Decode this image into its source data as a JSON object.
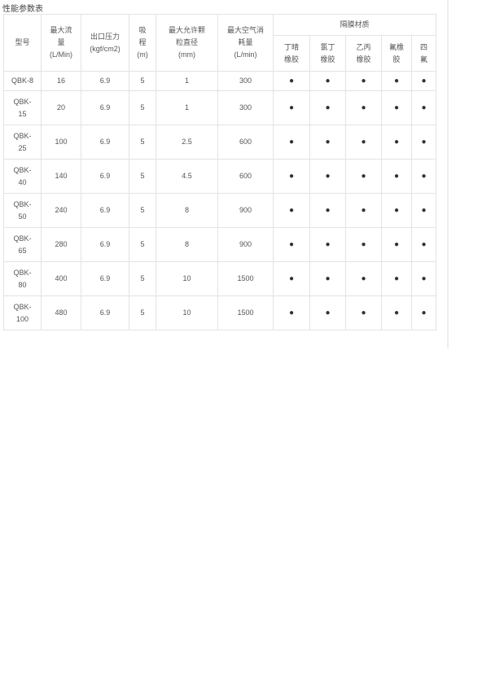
{
  "title": "性能参数表",
  "headers": {
    "model": "型号",
    "flow": [
      "最大流",
      "量",
      "(L/Min)"
    ],
    "pressure": [
      "出口压力",
      "(kgf/cm2)"
    ],
    "suction": [
      "吸",
      "程",
      "(m)"
    ],
    "particle": [
      "最大允许颗",
      "粒直径",
      "(mm)"
    ],
    "air": [
      "最大空气消",
      "耗量",
      "(L/min)"
    ],
    "material": "隔膜材质",
    "materials": [
      [
        "丁晴",
        "橡胶"
      ],
      [
        "氯丁",
        "橡胶"
      ],
      [
        "乙丙",
        "橡胶"
      ],
      [
        "氟橡",
        "胶"
      ],
      [
        "四",
        "氟"
      ]
    ]
  },
  "marker": "●",
  "rows": [
    {
      "model": [
        "QBK-8"
      ],
      "flow": "16",
      "pressure": "6.9",
      "suction": "5",
      "particle": "1",
      "air": "300"
    },
    {
      "model": [
        "QBK-",
        "15"
      ],
      "flow": "20",
      "pressure": "6.9",
      "suction": "5",
      "particle": "1",
      "air": "300"
    },
    {
      "model": [
        "QBK-",
        "25"
      ],
      "flow": "100",
      "pressure": "6.9",
      "suction": "5",
      "particle": "2.5",
      "air": "600"
    },
    {
      "model": [
        "QBK-",
        "40"
      ],
      "flow": "140",
      "pressure": "6.9",
      "suction": "5",
      "particle": "4.5",
      "air": "600"
    },
    {
      "model": [
        "QBK-",
        "50"
      ],
      "flow": "240",
      "pressure": "6.9",
      "suction": "5",
      "particle": "8",
      "air": "900"
    },
    {
      "model": [
        "QBK-",
        "65"
      ],
      "flow": "280",
      "pressure": "6.9",
      "suction": "5",
      "particle": "8",
      "air": "900"
    },
    {
      "model": [
        "QBK-",
        "80"
      ],
      "flow": "400",
      "pressure": "6.9",
      "suction": "5",
      "particle": "10",
      "air": "1500"
    },
    {
      "model": [
        "QBK-",
        "100"
      ],
      "flow": "480",
      "pressure": "6.9",
      "suction": "5",
      "particle": "10",
      "air": "1500"
    }
  ]
}
